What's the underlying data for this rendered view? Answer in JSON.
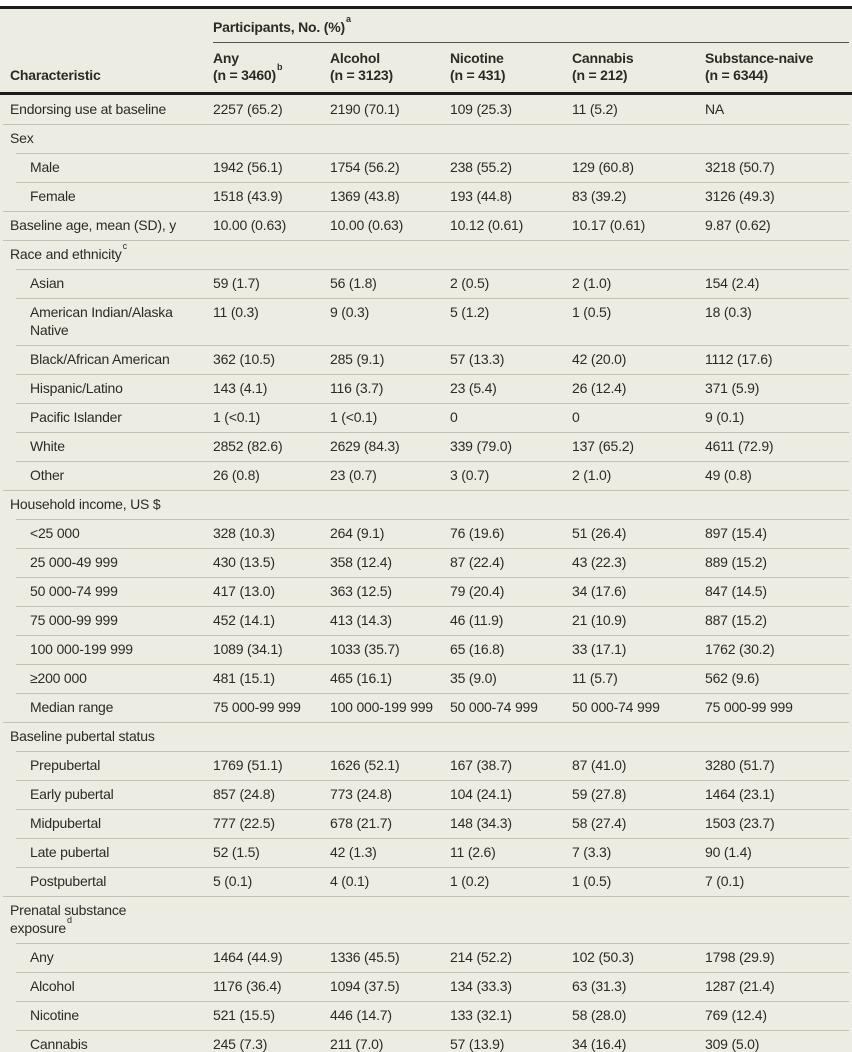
{
  "colors": {
    "table_background": "#edece3",
    "text": "#2b2a26",
    "thick_rule": "#1c1c1a",
    "thin_rule": "#c3c1b6",
    "spanner_rule": "#55534b"
  },
  "table": {
    "header": {
      "span_label": "Participants, No. (%)",
      "span_sup": "a",
      "characteristic_label": "Characteristic",
      "columns": [
        {
          "label": "Any",
          "n": "(n = 3460)",
          "sup": "b"
        },
        {
          "label": "Alcohol",
          "n": "(n = 3123)"
        },
        {
          "label": "Nicotine",
          "n": "(n = 431)"
        },
        {
          "label": "Cannabis",
          "n": "(n = 212)"
        },
        {
          "label": "Substance-naive",
          "n": "(n = 6344)"
        }
      ]
    },
    "rows": [
      {
        "type": "data",
        "indent": 0,
        "label": "Endorsing use at baseline",
        "values": [
          "2257 (65.2)",
          "2190 (70.1)",
          "109 (25.3)",
          "11 (5.2)",
          "NA"
        ]
      },
      {
        "type": "section",
        "label": "Sex"
      },
      {
        "type": "data",
        "indent": 1,
        "label": "Male",
        "values": [
          "1942 (56.1)",
          "1754 (56.2)",
          "238 (55.2)",
          "129 (60.8)",
          "3218 (50.7)"
        ]
      },
      {
        "type": "data",
        "indent": 1,
        "label": "Female",
        "values": [
          "1518 (43.9)",
          "1369 (43.8)",
          "193 (44.8)",
          "83 (39.2)",
          "3126 (49.3)"
        ]
      },
      {
        "type": "data",
        "indent": 0,
        "label": "Baseline age, mean (SD), y",
        "values": [
          "10.00 (0.63)",
          "10.00 (0.63)",
          "10.12 (0.61)",
          "10.17 (0.61)",
          "9.87 (0.62)"
        ]
      },
      {
        "type": "section",
        "label": "Race and ethnicity",
        "sup": "c"
      },
      {
        "type": "data",
        "indent": 1,
        "label": "Asian",
        "values": [
          "59 (1.7)",
          "56 (1.8)",
          "2 (0.5)",
          "2 (1.0)",
          "154 (2.4)"
        ]
      },
      {
        "type": "data",
        "indent": 1,
        "label": "American Indian/Alaska\nNative",
        "values": [
          "11 (0.3)",
          "9 (0.3)",
          "5 (1.2)",
          "1 (0.5)",
          "18 (0.3)"
        ]
      },
      {
        "type": "data",
        "indent": 1,
        "label": "Black/African American",
        "values": [
          "362 (10.5)",
          "285 (9.1)",
          "57 (13.3)",
          "42 (20.0)",
          "1112 (17.6)"
        ]
      },
      {
        "type": "data",
        "indent": 1,
        "label": "Hispanic/Latino",
        "values": [
          "143 (4.1)",
          "116 (3.7)",
          "23 (5.4)",
          "26 (12.4)",
          "371 (5.9)"
        ]
      },
      {
        "type": "data",
        "indent": 1,
        "label": "Pacific Islander",
        "values": [
          "1 (<0.1)",
          "1 (<0.1)",
          "0",
          "0",
          "9 (0.1)"
        ]
      },
      {
        "type": "data",
        "indent": 1,
        "label": "White",
        "values": [
          "2852 (82.6)",
          "2629 (84.3)",
          "339 (79.0)",
          "137 (65.2)",
          "4611 (72.9)"
        ]
      },
      {
        "type": "data",
        "indent": 1,
        "label": "Other",
        "values": [
          "26 (0.8)",
          "23 (0.7)",
          "3 (0.7)",
          "2 (1.0)",
          "49 (0.8)"
        ]
      },
      {
        "type": "section",
        "label": "Household income, US $"
      },
      {
        "type": "data",
        "indent": 1,
        "label": "<25 000",
        "values": [
          "328 (10.3)",
          "264 (9.1)",
          "76 (19.6)",
          "51 (26.4)",
          "897 (15.4)"
        ]
      },
      {
        "type": "data",
        "indent": 1,
        "label": "25 000-49 999",
        "values": [
          "430 (13.5)",
          "358 (12.4)",
          "87 (22.4)",
          "43 (22.3)",
          "889 (15.2)"
        ]
      },
      {
        "type": "data",
        "indent": 1,
        "label": "50 000-74 999",
        "values": [
          "417 (13.0)",
          "363 (12.5)",
          "79 (20.4)",
          "34 (17.6)",
          "847 (14.5)"
        ]
      },
      {
        "type": "data",
        "indent": 1,
        "label": "75 000-99 999",
        "values": [
          "452 (14.1)",
          "413 (14.3)",
          "46 (11.9)",
          "21 (10.9)",
          "887 (15.2)"
        ]
      },
      {
        "type": "data",
        "indent": 1,
        "label": "100 000-199 999",
        "values": [
          "1089 (34.1)",
          "1033 (35.7)",
          "65 (16.8)",
          "33 (17.1)",
          "1762 (30.2)"
        ]
      },
      {
        "type": "data",
        "indent": 1,
        "label": "≥200 000",
        "values": [
          "481 (15.1)",
          "465 (16.1)",
          "35 (9.0)",
          "11 (5.7)",
          "562 (9.6)"
        ]
      },
      {
        "type": "data",
        "indent": 1,
        "label": "Median range",
        "values": [
          "75 000-99 999",
          "100 000-199 999",
          "50 000-74 999",
          "50 000-74 999",
          "75 000-99 999"
        ]
      },
      {
        "type": "section",
        "label": "Baseline pubertal status"
      },
      {
        "type": "data",
        "indent": 1,
        "label": "Prepubertal",
        "values": [
          "1769 (51.1)",
          "1626 (52.1)",
          "167 (38.7)",
          "87 (41.0)",
          "3280 (51.7)"
        ]
      },
      {
        "type": "data",
        "indent": 1,
        "label": "Early pubertal",
        "values": [
          "857 (24.8)",
          "773 (24.8)",
          "104 (24.1)",
          "59 (27.8)",
          "1464 (23.1)"
        ]
      },
      {
        "type": "data",
        "indent": 1,
        "label": "Midpubertal",
        "values": [
          "777 (22.5)",
          "678 (21.7)",
          "148 (34.3)",
          "58 (27.4)",
          "1503 (23.7)"
        ]
      },
      {
        "type": "data",
        "indent": 1,
        "label": "Late pubertal",
        "values": [
          "52 (1.5)",
          "42 (1.3)",
          "11 (2.6)",
          "7 (3.3)",
          "90 (1.4)"
        ]
      },
      {
        "type": "data",
        "indent": 1,
        "label": "Postpubertal",
        "values": [
          "5 (0.1)",
          "4 (0.1)",
          "1 (0.2)",
          "1 (0.5)",
          "7 (0.1)"
        ]
      },
      {
        "type": "section",
        "label": "Prenatal substance\nexposure",
        "sup": "d"
      },
      {
        "type": "data",
        "indent": 1,
        "label": "Any",
        "values": [
          "1464 (44.9)",
          "1336 (45.5)",
          "214 (52.2)",
          "102 (50.3)",
          "1798 (29.9)"
        ]
      },
      {
        "type": "data",
        "indent": 1,
        "label": "Alcohol",
        "values": [
          "1176 (36.4)",
          "1094 (37.5)",
          "134 (33.3)",
          "63 (31.3)",
          "1287 (21.4)"
        ]
      },
      {
        "type": "data",
        "indent": 1,
        "label": "Nicotine",
        "values": [
          "521 (15.5)",
          "446 (14.7)",
          "133 (32.1)",
          "58 (28.0)",
          "769 (12.4)"
        ]
      },
      {
        "type": "data",
        "indent": 1,
        "label": "Cannabis",
        "values": [
          "245 (7.3)",
          "211 (7.0)",
          "57 (13.9)",
          "34 (16.4)",
          "309 (5.0)"
        ]
      }
    ]
  }
}
